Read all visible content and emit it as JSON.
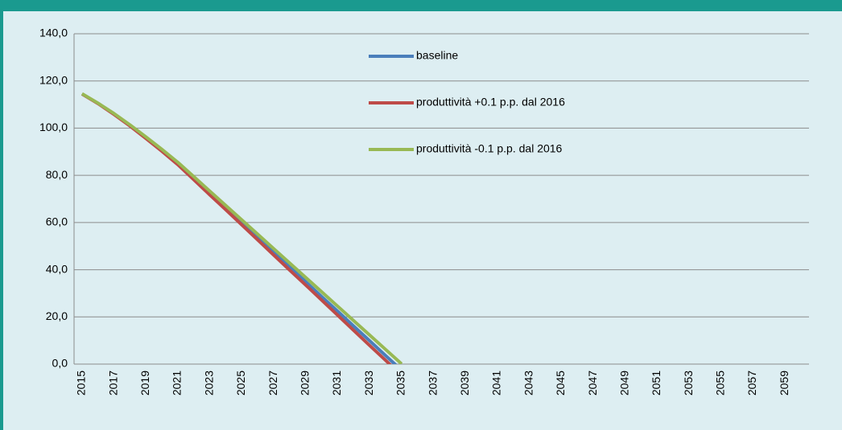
{
  "chart_data": {
    "type": "line",
    "categories": [
      "2015",
      null,
      "2017",
      null,
      "2019",
      null,
      "2021",
      null,
      "2023",
      null,
      "2025",
      null,
      "2027",
      null,
      "2029",
      null,
      "2031",
      null,
      "2033",
      null,
      "2035",
      null,
      "2037",
      null,
      "2039",
      null,
      "2041",
      null,
      "2043",
      null,
      "2045",
      null,
      "2047",
      null,
      "2049",
      null,
      "2051",
      null,
      "2053",
      null,
      "2055",
      null,
      "2057",
      null,
      "2059",
      null
    ],
    "series": [
      {
        "name": "baseline",
        "color": "#4a7ebb",
        "values": [
          114.5,
          110.5,
          106,
          101.2,
          96,
          90.6,
          85,
          78.7,
          72.5,
          66.2,
          60,
          53.7,
          47.4,
          41.2,
          34.9,
          28.6,
          22.4,
          16.1,
          9.9,
          3.6,
          -2.6,
          null,
          null,
          null,
          null,
          null,
          null,
          null,
          null,
          null,
          null,
          null,
          null,
          null,
          null,
          null,
          null,
          null,
          null,
          null,
          null,
          null,
          null,
          null,
          null,
          null
        ]
      },
      {
        "name": "produttività +0.1 p.p. dal 2016",
        "color": "#be4b48",
        "values": [
          114.5,
          110.4,
          105.8,
          100.9,
          95.6,
          90.2,
          84.5,
          78.1,
          71.7,
          65.4,
          59,
          52.6,
          46.2,
          39.8,
          33.5,
          27.1,
          20.7,
          14.3,
          7.9,
          1.6,
          -4.8,
          null,
          null,
          null,
          null,
          null,
          null,
          null,
          null,
          null,
          null,
          null,
          null,
          null,
          null,
          null,
          null,
          null,
          null,
          null,
          null,
          null,
          null,
          null,
          null,
          null
        ]
      },
      {
        "name": "produttività -0.1 p.p. dal 2016",
        "color": "#98b954",
        "values": [
          114.6,
          110.6,
          106.2,
          101.4,
          96.3,
          91,
          85.5,
          79.4,
          73.3,
          67.2,
          61.1,
          55,
          48.9,
          42.8,
          36.7,
          30.6,
          24.5,
          18.4,
          12.3,
          6.2,
          0.1,
          null,
          null,
          null,
          null,
          null,
          null,
          null,
          null,
          null,
          null,
          null,
          null,
          null,
          null,
          null,
          null,
          null,
          null,
          null,
          null,
          null,
          null,
          null,
          null,
          null
        ]
      }
    ],
    "ylim": [
      0,
      140
    ],
    "yticks": [
      {
        "value": 0,
        "label": "0,0"
      },
      {
        "value": 20,
        "label": "20,0"
      },
      {
        "value": 40,
        "label": "40,0"
      },
      {
        "value": 60,
        "label": "60,0"
      },
      {
        "value": 80,
        "label": "80,0"
      },
      {
        "value": 100,
        "label": "100,0"
      },
      {
        "value": 120,
        "label": "120,0"
      },
      {
        "value": 140,
        "label": "140,0"
      }
    ],
    "grid": true
  }
}
